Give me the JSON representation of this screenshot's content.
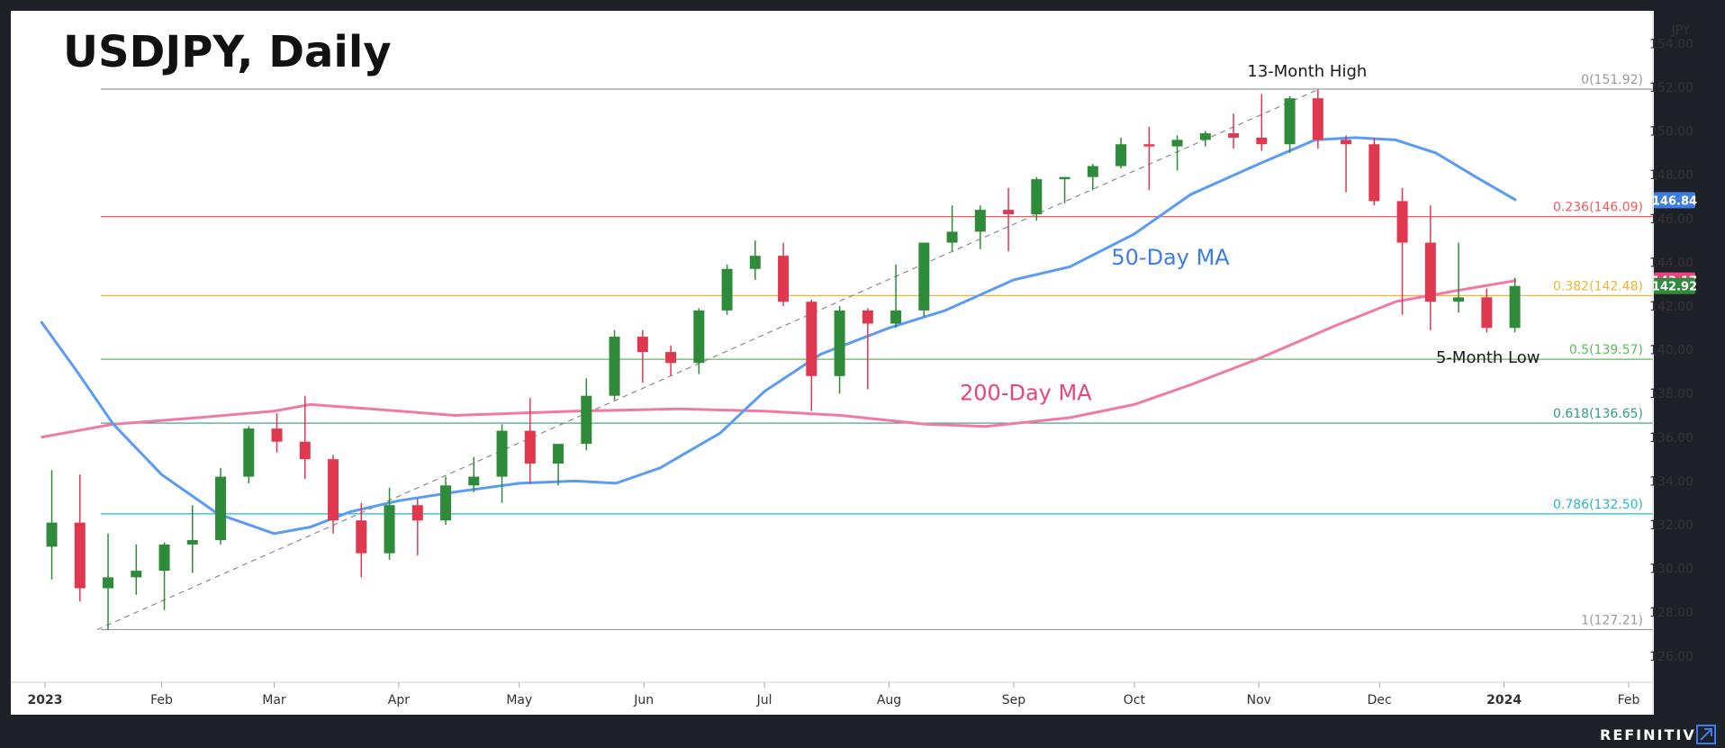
{
  "title": "USDJPY, Daily",
  "brand": "REFINITIV",
  "chart_data": {
    "type": "candlestick",
    "y_unit": "JPY",
    "ylim": [
      124.8,
      155.5
    ],
    "y_ticks": [
      "154.00",
      "152.00",
      "150.00",
      "148.00",
      "146.00",
      "144.00",
      "142.00",
      "140.00",
      "138.00",
      "136.00",
      "134.00",
      "132.00",
      "130.00",
      "128.00",
      "126.00"
    ],
    "x_ticks": [
      {
        "label": "2023",
        "date": "2023-01-03",
        "bold": true
      },
      {
        "label": "Feb",
        "date": "2023-02-01",
        "bold": false
      },
      {
        "label": "Mar",
        "date": "2023-03-01",
        "bold": false
      },
      {
        "label": "Apr",
        "date": "2023-04-01",
        "bold": false
      },
      {
        "label": "May",
        "date": "2023-05-01",
        "bold": false
      },
      {
        "label": "Jun",
        "date": "2023-06-01",
        "bold": false
      },
      {
        "label": "Jul",
        "date": "2023-07-01",
        "bold": false
      },
      {
        "label": "Aug",
        "date": "2023-08-01",
        "bold": false
      },
      {
        "label": "Sep",
        "date": "2023-09-01",
        "bold": false
      },
      {
        "label": "Oct",
        "date": "2023-10-01",
        "bold": false
      },
      {
        "label": "Nov",
        "date": "2023-11-01",
        "bold": false
      },
      {
        "label": "Dec",
        "date": "2023-12-01",
        "bold": false
      },
      {
        "label": "2024",
        "date": "2024-01-01",
        "bold": true
      },
      {
        "label": "Feb",
        "date": "2024-02-01",
        "bold": false
      }
    ],
    "colors": {
      "up": "#2e8b3a",
      "down": "#e0394f",
      "ma50": "#5b9bf2",
      "ma200": "#f07aa6",
      "trend": "#8a8a8a"
    },
    "fib_levels": [
      {
        "label": "0(151.92)",
        "value": 151.92,
        "color": "#9a9a9a"
      },
      {
        "label": "0.236(146.09)",
        "value": 146.09,
        "color": "#ef5b5b"
      },
      {
        "label": "0.382(142.48)",
        "value": 142.48,
        "color": "#f2b233"
      },
      {
        "label": "0.5(139.57)",
        "value": 139.57,
        "color": "#5dba5a"
      },
      {
        "label": "0.618(136.65)",
        "value": 136.65,
        "color": "#2f9e7f"
      },
      {
        "label": "0.786(132.50)",
        "value": 132.5,
        "color": "#25b8c8"
      },
      {
        "label": "1(127.21)",
        "value": 127.21,
        "color": "#9a9a9a"
      }
    ],
    "price_badges": [
      {
        "label": "146.84",
        "value": 146.84,
        "color": "#3d7ee6"
      },
      {
        "label": "143.17",
        "value": 143.17,
        "color": "#e8457f"
      },
      {
        "label": "142.92",
        "value": 142.92,
        "color": "#2e8b3a"
      }
    ],
    "annotations": [
      {
        "text": "13-Month High",
        "date": "2023-11-13",
        "value": 152.5
      },
      {
        "text": "5-Month Low",
        "date": "2023-12-28",
        "value": 139.4
      },
      {
        "text": "50-Day MA",
        "date": "2023-10-10",
        "value": 143.9,
        "color": "#3d7ee6"
      },
      {
        "text": "200-Day MA",
        "date": "2023-09-04",
        "value": 137.7,
        "color": "#e8457f"
      }
    ],
    "trendline": {
      "from": {
        "date": "2023-01-16",
        "value": 127.21
      },
      "to": {
        "date": "2023-11-16",
        "value": 151.92
      }
    },
    "ma50": [
      {
        "date": "2023-01-02",
        "value": 141.3
      },
      {
        "date": "2023-01-11",
        "value": 139.0
      },
      {
        "date": "2023-01-20",
        "value": 136.6
      },
      {
        "date": "2023-02-01",
        "value": 134.3
      },
      {
        "date": "2023-02-15",
        "value": 132.5
      },
      {
        "date": "2023-03-01",
        "value": 131.6
      },
      {
        "date": "2023-03-10",
        "value": 131.9
      },
      {
        "date": "2023-03-20",
        "value": 132.6
      },
      {
        "date": "2023-04-01",
        "value": 133.1
      },
      {
        "date": "2023-04-15",
        "value": 133.5
      },
      {
        "date": "2023-05-01",
        "value": 133.9
      },
      {
        "date": "2023-05-15",
        "value": 134.0
      },
      {
        "date": "2023-05-25",
        "value": 133.9
      },
      {
        "date": "2023-06-05",
        "value": 134.6
      },
      {
        "date": "2023-06-20",
        "value": 136.2
      },
      {
        "date": "2023-07-01",
        "value": 138.1
      },
      {
        "date": "2023-07-15",
        "value": 139.8
      },
      {
        "date": "2023-08-01",
        "value": 141.0
      },
      {
        "date": "2023-08-15",
        "value": 141.8
      },
      {
        "date": "2023-09-01",
        "value": 143.2
      },
      {
        "date": "2023-09-15",
        "value": 143.8
      },
      {
        "date": "2023-10-01",
        "value": 145.3
      },
      {
        "date": "2023-10-15",
        "value": 147.1
      },
      {
        "date": "2023-11-01",
        "value": 148.5
      },
      {
        "date": "2023-11-15",
        "value": 149.6
      },
      {
        "date": "2023-11-25",
        "value": 149.7
      },
      {
        "date": "2023-12-05",
        "value": 149.6
      },
      {
        "date": "2023-12-15",
        "value": 149.0
      },
      {
        "date": "2023-12-25",
        "value": 147.9
      },
      {
        "date": "2024-01-04",
        "value": 146.84
      }
    ],
    "ma200": [
      {
        "date": "2023-01-02",
        "value": 136.0
      },
      {
        "date": "2023-01-20",
        "value": 136.6
      },
      {
        "date": "2023-02-10",
        "value": 136.9
      },
      {
        "date": "2023-03-01",
        "value": 137.2
      },
      {
        "date": "2023-03-10",
        "value": 137.5
      },
      {
        "date": "2023-03-25",
        "value": 137.3
      },
      {
        "date": "2023-04-15",
        "value": 137.0
      },
      {
        "date": "2023-05-15",
        "value": 137.2
      },
      {
        "date": "2023-06-10",
        "value": 137.3
      },
      {
        "date": "2023-07-01",
        "value": 137.2
      },
      {
        "date": "2023-07-20",
        "value": 137.0
      },
      {
        "date": "2023-08-10",
        "value": 136.6
      },
      {
        "date": "2023-08-25",
        "value": 136.5
      },
      {
        "date": "2023-09-15",
        "value": 136.9
      },
      {
        "date": "2023-10-01",
        "value": 137.5
      },
      {
        "date": "2023-10-15",
        "value": 138.4
      },
      {
        "date": "2023-11-01",
        "value": 139.6
      },
      {
        "date": "2023-11-20",
        "value": 141.1
      },
      {
        "date": "2023-12-05",
        "value": 142.2
      },
      {
        "date": "2023-12-20",
        "value": 142.7
      },
      {
        "date": "2024-01-04",
        "value": 143.17
      }
    ],
    "ohlc_weekly_approx": [
      {
        "date": "2023-01-02",
        "o": 131.0,
        "h": 134.5,
        "l": 129.5,
        "c": 132.1
      },
      {
        "date": "2023-01-09",
        "o": 132.1,
        "h": 134.3,
        "l": 128.5,
        "c": 129.1
      },
      {
        "date": "2023-01-16",
        "o": 129.1,
        "h": 131.6,
        "l": 127.21,
        "c": 129.6
      },
      {
        "date": "2023-01-23",
        "o": 129.6,
        "h": 131.1,
        "l": 128.8,
        "c": 129.9
      },
      {
        "date": "2023-01-30",
        "o": 129.9,
        "h": 131.2,
        "l": 128.1,
        "c": 131.1
      },
      {
        "date": "2023-02-06",
        "o": 131.1,
        "h": 132.9,
        "l": 129.8,
        "c": 131.3
      },
      {
        "date": "2023-02-13",
        "o": 131.3,
        "h": 134.6,
        "l": 131.1,
        "c": 134.2
      },
      {
        "date": "2023-02-20",
        "o": 134.2,
        "h": 136.5,
        "l": 133.9,
        "c": 136.4
      },
      {
        "date": "2023-02-27",
        "o": 136.4,
        "h": 137.1,
        "l": 135.3,
        "c": 135.8
      },
      {
        "date": "2023-03-06",
        "o": 135.8,
        "h": 137.9,
        "l": 134.1,
        "c": 135.0
      },
      {
        "date": "2023-03-13",
        "o": 135.0,
        "h": 135.2,
        "l": 131.6,
        "c": 132.2
      },
      {
        "date": "2023-03-20",
        "o": 132.2,
        "h": 133.0,
        "l": 129.6,
        "c": 130.7
      },
      {
        "date": "2023-03-27",
        "o": 130.7,
        "h": 133.7,
        "l": 130.4,
        "c": 132.9
      },
      {
        "date": "2023-04-03",
        "o": 132.9,
        "h": 133.2,
        "l": 130.6,
        "c": 132.2
      },
      {
        "date": "2023-04-10",
        "o": 132.2,
        "h": 134.2,
        "l": 132.0,
        "c": 133.8
      },
      {
        "date": "2023-04-17",
        "o": 133.8,
        "h": 135.1,
        "l": 133.5,
        "c": 134.2
      },
      {
        "date": "2023-04-24",
        "o": 134.2,
        "h": 136.6,
        "l": 133.0,
        "c": 136.3
      },
      {
        "date": "2023-05-01",
        "o": 136.3,
        "h": 137.8,
        "l": 133.9,
        "c": 134.8
      },
      {
        "date": "2023-05-08",
        "o": 134.8,
        "h": 135.6,
        "l": 133.8,
        "c": 135.7
      },
      {
        "date": "2023-05-15",
        "o": 135.7,
        "h": 138.7,
        "l": 135.4,
        "c": 137.9
      },
      {
        "date": "2023-05-22",
        "o": 137.9,
        "h": 140.9,
        "l": 137.7,
        "c": 140.6
      },
      {
        "date": "2023-05-29",
        "o": 140.6,
        "h": 140.9,
        "l": 138.5,
        "c": 139.9
      },
      {
        "date": "2023-06-05",
        "o": 139.9,
        "h": 140.2,
        "l": 138.8,
        "c": 139.4
      },
      {
        "date": "2023-06-12",
        "o": 139.4,
        "h": 141.9,
        "l": 138.9,
        "c": 141.8
      },
      {
        "date": "2023-06-19",
        "o": 141.8,
        "h": 143.9,
        "l": 141.6,
        "c": 143.7
      },
      {
        "date": "2023-06-26",
        "o": 143.7,
        "h": 145.0,
        "l": 143.2,
        "c": 144.3
      },
      {
        "date": "2023-07-03",
        "o": 144.3,
        "h": 144.9,
        "l": 142.0,
        "c": 142.2
      },
      {
        "date": "2023-07-10",
        "o": 142.2,
        "h": 142.3,
        "l": 137.2,
        "c": 138.8
      },
      {
        "date": "2023-07-17",
        "o": 138.8,
        "h": 142.0,
        "l": 138.0,
        "c": 141.8
      },
      {
        "date": "2023-07-24",
        "o": 141.8,
        "h": 141.9,
        "l": 138.2,
        "c": 141.2
      },
      {
        "date": "2023-07-31",
        "o": 141.2,
        "h": 143.9,
        "l": 141.0,
        "c": 141.8
      },
      {
        "date": "2023-08-07",
        "o": 141.8,
        "h": 144.9,
        "l": 141.5,
        "c": 144.9
      },
      {
        "date": "2023-08-14",
        "o": 144.9,
        "h": 146.6,
        "l": 144.5,
        "c": 145.4
      },
      {
        "date": "2023-08-21",
        "o": 145.4,
        "h": 146.6,
        "l": 144.6,
        "c": 146.4
      },
      {
        "date": "2023-08-28",
        "o": 146.4,
        "h": 147.4,
        "l": 144.5,
        "c": 146.2
      },
      {
        "date": "2023-09-04",
        "o": 146.2,
        "h": 147.9,
        "l": 145.9,
        "c": 147.8
      },
      {
        "date": "2023-09-11",
        "o": 147.8,
        "h": 147.9,
        "l": 146.7,
        "c": 147.9
      },
      {
        "date": "2023-09-18",
        "o": 147.9,
        "h": 148.5,
        "l": 147.3,
        "c": 148.4
      },
      {
        "date": "2023-09-25",
        "o": 148.4,
        "h": 149.7,
        "l": 148.3,
        "c": 149.4
      },
      {
        "date": "2023-10-02",
        "o": 149.4,
        "h": 150.2,
        "l": 147.3,
        "c": 149.3
      },
      {
        "date": "2023-10-09",
        "o": 149.3,
        "h": 149.8,
        "l": 148.2,
        "c": 149.6
      },
      {
        "date": "2023-10-16",
        "o": 149.6,
        "h": 150.0,
        "l": 149.3,
        "c": 149.9
      },
      {
        "date": "2023-10-23",
        "o": 149.9,
        "h": 150.8,
        "l": 149.2,
        "c": 149.7
      },
      {
        "date": "2023-10-30",
        "o": 149.7,
        "h": 151.7,
        "l": 149.1,
        "c": 149.4
      },
      {
        "date": "2023-11-06",
        "o": 149.4,
        "h": 151.6,
        "l": 149.0,
        "c": 151.5
      },
      {
        "date": "2023-11-13",
        "o": 151.5,
        "h": 151.92,
        "l": 149.2,
        "c": 149.6
      },
      {
        "date": "2023-11-20",
        "o": 149.6,
        "h": 149.8,
        "l": 147.2,
        "c": 149.4
      },
      {
        "date": "2023-11-27",
        "o": 149.4,
        "h": 149.7,
        "l": 146.6,
        "c": 146.8
      },
      {
        "date": "2023-12-04",
        "o": 146.8,
        "h": 147.4,
        "l": 141.6,
        "c": 144.9
      },
      {
        "date": "2023-12-11",
        "o": 144.9,
        "h": 146.6,
        "l": 140.9,
        "c": 142.2
      },
      {
        "date": "2023-12-18",
        "o": 142.2,
        "h": 144.9,
        "l": 141.7,
        "c": 142.4
      },
      {
        "date": "2023-12-25",
        "o": 142.4,
        "h": 142.8,
        "l": 140.8,
        "c": 141.0
      },
      {
        "date": "2024-01-01",
        "o": 141.0,
        "h": 143.3,
        "l": 140.8,
        "c": 142.92
      }
    ]
  }
}
